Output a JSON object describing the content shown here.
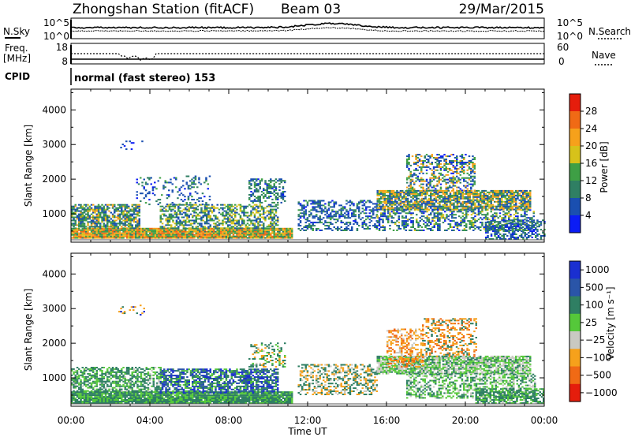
{
  "header": {
    "station": "Zhongshan Station (fitACF)",
    "beam": "Beam 03",
    "date": "29/Mar/2015"
  },
  "top_panels": {
    "nsky_label": "N.Sky",
    "nsky_ticks": [
      "10^5",
      "10^0"
    ],
    "nsearch_label": "N.Search",
    "nsearch_ticks": [
      "10^5",
      "10^0"
    ],
    "freq_label_1": "Freq.",
    "freq_label_2": "[MHz]",
    "freq_ticks": [
      "18",
      "8"
    ],
    "nave_label": "Nave",
    "nave_ticks": [
      "60",
      "0"
    ],
    "cpid_label": "CPID",
    "cpid_text": "normal (fast stereo) 153"
  },
  "chart_data": [
    {
      "type": "heatmap",
      "name": "power",
      "xlabel": "",
      "ylabel": "Slant Range [km]",
      "xlim_hours": [
        0,
        24
      ],
      "ylim": [
        180,
        4600
      ],
      "yticks": [
        "1000",
        "2000",
        "3000",
        "4000"
      ],
      "colorbar": {
        "label": "Power [dB]",
        "ticks": [
          "4",
          "8",
          "12",
          "16",
          "20",
          "24",
          "28"
        ],
        "colors": [
          "#0b1cf5",
          "#1a4fb0",
          "#2f7f63",
          "#3e9f45",
          "#d7c21a",
          "#f6a11b",
          "#f06a15",
          "#e51d0c"
        ]
      },
      "blobs": [
        {
          "t0": 0.0,
          "t1": 11.2,
          "r0": 280,
          "r1": 560,
          "levels": [
            26,
            22,
            16,
            12
          ],
          "density": 0.97
        },
        {
          "t0": 0.0,
          "t1": 3.5,
          "r0": 560,
          "r1": 1250,
          "levels": [
            20,
            14,
            10,
            6
          ],
          "density": 0.7
        },
        {
          "t0": 4.5,
          "t1": 10.5,
          "r0": 560,
          "r1": 1250,
          "levels": [
            18,
            14,
            10,
            6
          ],
          "density": 0.55
        },
        {
          "t0": 9.0,
          "t1": 10.8,
          "r0": 1300,
          "r1": 2000,
          "levels": [
            14,
            10,
            8,
            4
          ],
          "density": 0.4
        },
        {
          "t0": 3.3,
          "t1": 7.0,
          "r0": 1250,
          "r1": 2100,
          "levels": [
            12,
            8,
            6,
            4
          ],
          "density": 0.22
        },
        {
          "t0": 11.5,
          "t1": 15.5,
          "r0": 500,
          "r1": 1400,
          "levels": [
            12,
            8,
            6,
            4
          ],
          "density": 0.45
        },
        {
          "t0": 15.5,
          "t1": 23.3,
          "r0": 1100,
          "r1": 1650,
          "levels": [
            22,
            16,
            10,
            6
          ],
          "density": 0.8
        },
        {
          "t0": 15.5,
          "t1": 23.5,
          "r0": 500,
          "r1": 1100,
          "levels": [
            16,
            12,
            8,
            4
          ],
          "density": 0.45
        },
        {
          "t0": 17.0,
          "t1": 20.5,
          "r0": 1650,
          "r1": 2700,
          "levels": [
            22,
            14,
            8,
            4
          ],
          "density": 0.4
        },
        {
          "t0": 21.0,
          "t1": 24.0,
          "r0": 250,
          "r1": 800,
          "levels": [
            12,
            8,
            6,
            4
          ],
          "density": 0.55
        },
        {
          "t0": 2.4,
          "t1": 3.8,
          "r0": 2800,
          "r1": 3100,
          "levels": [
            6,
            4,
            4,
            4
          ],
          "density": 0.15
        }
      ]
    },
    {
      "type": "heatmap",
      "name": "velocity",
      "xlabel": "Time UT",
      "ylabel": "Slant Range [km]",
      "xlim_hours": [
        0,
        24
      ],
      "ylim": [
        180,
        4600
      ],
      "yticks": [
        "1000",
        "2000",
        "3000",
        "4000"
      ],
      "xticks": [
        "00:00",
        "04:00",
        "08:00",
        "12:00",
        "16:00",
        "20:00",
        "00:00"
      ],
      "colorbar": {
        "label": "Velocity [m s⁻¹]",
        "ticks": [
          "1000",
          "500",
          "100",
          "25",
          "−25",
          "−100",
          "−500",
          "−1000"
        ],
        "colors": [
          "#1a2fd0",
          "#2a55a8",
          "#2f7f63",
          "#55c83a",
          "#c9c9c2",
          "#f6a11b",
          "#f06a15",
          "#e51d0c"
        ]
      },
      "blobs": [
        {
          "t0": 0.0,
          "t1": 11.2,
          "r0": 250,
          "r1": 600,
          "levels": [
            60,
            200,
            30,
            100
          ],
          "density": 0.95
        },
        {
          "t0": 0.0,
          "t1": 4.5,
          "r0": 600,
          "r1": 1300,
          "levels": [
            10,
            200,
            80,
            50
          ],
          "density": 0.6
        },
        {
          "t0": 4.5,
          "t1": 10.5,
          "r0": 550,
          "r1": 1250,
          "levels": [
            900,
            600,
            200,
            50
          ],
          "density": 0.7
        },
        {
          "t0": 9.0,
          "t1": 10.8,
          "r0": 1300,
          "r1": 2000,
          "levels": [
            10,
            200,
            -150,
            80
          ],
          "density": 0.35
        },
        {
          "t0": 11.5,
          "t1": 15.5,
          "r0": 500,
          "r1": 1400,
          "levels": [
            -150,
            200,
            -50,
            80
          ],
          "density": 0.4
        },
        {
          "t0": 15.5,
          "t1": 23.3,
          "r0": 1100,
          "r1": 1600,
          "levels": [
            0,
            10,
            -10,
            200
          ],
          "density": 0.85
        },
        {
          "t0": 16.0,
          "t1": 17.8,
          "r0": 1300,
          "r1": 2400,
          "levels": [
            -300,
            -150,
            -600,
            -50
          ],
          "density": 0.45
        },
        {
          "t0": 17.8,
          "t1": 20.5,
          "r0": 1600,
          "r1": 2700,
          "levels": [
            -300,
            -150,
            200,
            -600
          ],
          "density": 0.35
        },
        {
          "t0": 17.0,
          "t1": 23.5,
          "r0": 400,
          "r1": 1100,
          "levels": [
            200,
            60,
            0,
            10
          ],
          "density": 0.5
        },
        {
          "t0": 20.5,
          "t1": 24.0,
          "r0": 250,
          "r1": 700,
          "levels": [
            100,
            200,
            10,
            60
          ],
          "density": 0.6
        },
        {
          "t0": 2.4,
          "t1": 3.8,
          "r0": 2800,
          "r1": 3100,
          "levels": [
            -150,
            200,
            900,
            -150
          ],
          "density": 0.15
        }
      ]
    }
  ]
}
